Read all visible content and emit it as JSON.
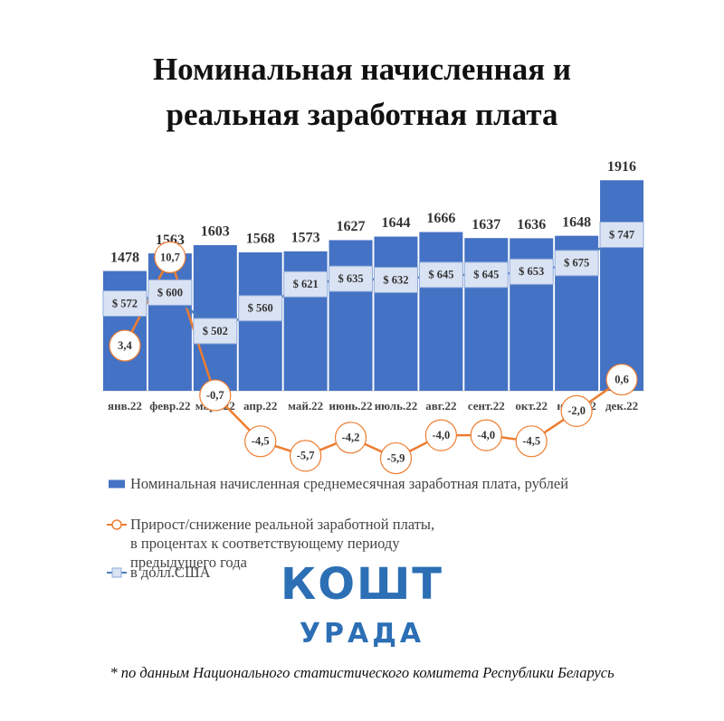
{
  "chart_data": {
    "type": "bar",
    "title": "Номинальная начисленная и реальная заработная плата",
    "categories": [
      "янв.22",
      "февр.22",
      "март.22",
      "апр.22",
      "май.22",
      "июнь.22",
      "июль.22",
      "авг.22",
      "сент.22",
      "окт.22",
      "нояб.22",
      "дек.22"
    ],
    "ylim": [
      900,
      2000
    ],
    "y2lim": [
      350,
      930
    ],
    "y3lim": [
      -8.4,
      18.5
    ],
    "series": [
      {
        "name": "Номинальная начисленная среднемесячная заработная плата, рублей",
        "type": "bar",
        "color": "#4472c4",
        "values": [
          1478,
          1563,
          1603,
          1568,
          1573,
          1627,
          1644,
          1666,
          1637,
          1636,
          1648,
          1916
        ]
      },
      {
        "name": "Прирост/снижение реальной заработной платы, в процентах к соответствующему периоду предыдущего года",
        "type": "line",
        "axis": "y3",
        "color": "#ed7d31",
        "values": [
          3.4,
          10.7,
          -0.7,
          -4.5,
          -5.7,
          -4.2,
          -5.9,
          -4.0,
          -4.0,
          -4.5,
          -2.0,
          0.6
        ],
        "value_labels": [
          "3,4",
          "10,7",
          "-0,7",
          "-4,5",
          "-5,7",
          "-4,2",
          "-5,9",
          "-4,0",
          "-4,0",
          "-4,5",
          "-2,0",
          "0,6"
        ]
      },
      {
        "name": "в долл.США",
        "type": "line",
        "axis": "y2",
        "color": "#4a7ebb",
        "values": [
          572,
          600,
          502,
          560,
          621,
          635,
          632,
          645,
          645,
          653,
          675,
          747
        ],
        "value_labels": [
          "$ 572",
          "$ 600",
          "$ 502",
          "$ 560",
          "$ 621",
          "$ 635",
          "$ 632",
          "$ 645",
          "$ 645",
          "$ 653",
          "$ 675",
          "$ 747"
        ]
      }
    ]
  },
  "logo": {
    "line1": "КОШТ",
    "line2": "УРАДА"
  },
  "footnote": "* по данным Национального статистического комитета Республики Беларусь"
}
